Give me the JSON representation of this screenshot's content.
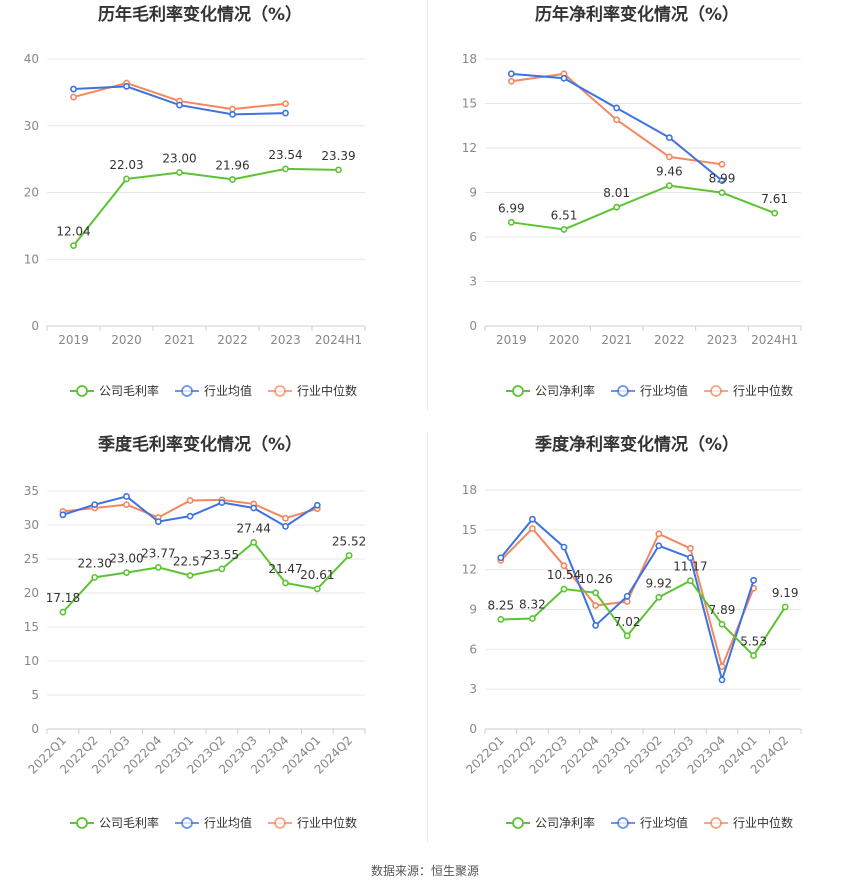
{
  "source_label": "数据来源：恒生聚源",
  "colors": {
    "company": "#5cc433",
    "industry_avg": "#3d72e0",
    "industry_median": "#f5875f",
    "grid": "#e6e6e6",
    "axis_text": "#888888",
    "title": "#333333"
  },
  "chart_data": [
    {
      "type": "line",
      "title": "历年毛利率变化情况（%）",
      "categories": [
        "2019",
        "2020",
        "2021",
        "2022",
        "2023",
        "2024H1"
      ],
      "ylim": [
        0,
        40
      ],
      "yticks": [
        0,
        10,
        20,
        30,
        40
      ],
      "grid": true,
      "rotate_x": false,
      "legend_position": "bottom",
      "series": [
        {
          "name": "公司毛利率",
          "color": "#5cc433",
          "labels": true,
          "values": [
            12.04,
            22.03,
            23.0,
            21.96,
            23.54,
            23.39
          ]
        },
        {
          "name": "行业均值",
          "color": "#3d72e0",
          "labels": false,
          "values": [
            35.5,
            35.9,
            33.1,
            31.7,
            31.9,
            null
          ]
        },
        {
          "name": "行业中位数",
          "color": "#f5875f",
          "labels": false,
          "values": [
            34.3,
            36.4,
            33.7,
            32.5,
            33.3,
            null
          ]
        }
      ]
    },
    {
      "type": "line",
      "title": "历年净利率变化情况（%）",
      "categories": [
        "2019",
        "2020",
        "2021",
        "2022",
        "2023",
        "2024H1"
      ],
      "ylim": [
        0,
        18
      ],
      "yticks": [
        0,
        3,
        6,
        9,
        12,
        15,
        18
      ],
      "grid": true,
      "rotate_x": false,
      "legend_position": "bottom",
      "series": [
        {
          "name": "公司净利率",
          "color": "#5cc433",
          "labels": true,
          "values": [
            6.99,
            6.51,
            8.01,
            9.46,
            8.99,
            7.61
          ]
        },
        {
          "name": "行业均值",
          "color": "#3d72e0",
          "labels": false,
          "values": [
            17.0,
            16.7,
            14.7,
            12.7,
            9.8,
            null
          ]
        },
        {
          "name": "行业中位数",
          "color": "#f5875f",
          "labels": false,
          "values": [
            16.5,
            17.0,
            13.9,
            11.4,
            10.9,
            null
          ]
        }
      ]
    },
    {
      "type": "line",
      "title": "季度毛利率变化情况（%）",
      "categories": [
        "2022Q1",
        "2022Q2",
        "2022Q3",
        "2022Q4",
        "2023Q1",
        "2023Q2",
        "2023Q3",
        "2023Q4",
        "2024Q1",
        "2024Q2"
      ],
      "ylim": [
        0,
        35
      ],
      "yticks": [
        0,
        5,
        10,
        15,
        20,
        25,
        30,
        35
      ],
      "grid": true,
      "rotate_x": true,
      "legend_position": "bottom",
      "series": [
        {
          "name": "公司毛利率",
          "color": "#5cc433",
          "labels": true,
          "values": [
            17.18,
            22.3,
            23.0,
            23.77,
            22.57,
            23.55,
            27.44,
            21.47,
            20.61,
            25.52
          ]
        },
        {
          "name": "行业均值",
          "color": "#3d72e0",
          "labels": false,
          "values": [
            31.5,
            33.0,
            34.2,
            30.5,
            31.3,
            33.3,
            32.5,
            29.8,
            32.9,
            null
          ]
        },
        {
          "name": "行业中位数",
          "color": "#f5875f",
          "labels": false,
          "values": [
            32.0,
            32.5,
            33.0,
            31.1,
            33.6,
            33.7,
            33.1,
            31.0,
            32.4,
            null
          ]
        }
      ]
    },
    {
      "type": "line",
      "title": "季度净利率变化情况（%）",
      "categories": [
        "2022Q1",
        "2022Q2",
        "2022Q3",
        "2022Q4",
        "2023Q1",
        "2023Q2",
        "2023Q3",
        "2023Q4",
        "2024Q1",
        "2024Q2"
      ],
      "ylim": [
        0,
        18
      ],
      "yticks": [
        0,
        3,
        6,
        9,
        12,
        15,
        18
      ],
      "grid": true,
      "rotate_x": true,
      "legend_position": "bottom",
      "series": [
        {
          "name": "公司净利率",
          "color": "#5cc433",
          "labels": true,
          "values": [
            8.25,
            8.32,
            10.54,
            10.26,
            7.02,
            9.92,
            11.17,
            7.89,
            5.53,
            9.19
          ]
        },
        {
          "name": "行业均值",
          "color": "#3d72e0",
          "labels": false,
          "values": [
            12.9,
            15.8,
            13.7,
            7.8,
            10.0,
            13.8,
            12.9,
            3.7,
            11.2,
            null
          ]
        },
        {
          "name": "行业中位数",
          "color": "#f5875f",
          "labels": false,
          "values": [
            12.7,
            15.1,
            12.3,
            9.3,
            9.6,
            14.7,
            13.6,
            4.7,
            10.6,
            null
          ]
        }
      ]
    }
  ]
}
